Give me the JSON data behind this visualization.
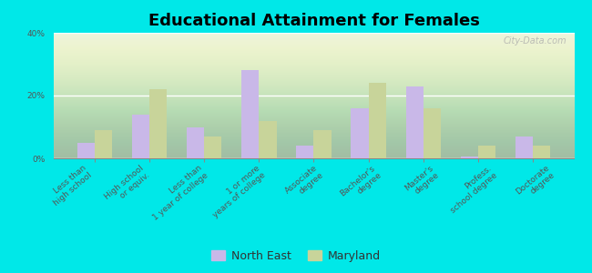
{
  "title": "Educational Attainment for Females",
  "categories": [
    "Less than\nhigh school",
    "High school\nor equiv.",
    "Less than\n1 year of college",
    "1 or more\nyears of college",
    "Associate\ndegree",
    "Bachelor's\ndegree",
    "Master's\ndegree",
    "Profess.\nschool degree",
    "Doctorate\ndegree"
  ],
  "north_east": [
    5.0,
    14.0,
    10.0,
    28.0,
    4.0,
    16.0,
    23.0,
    0.5,
    7.0
  ],
  "maryland": [
    9.0,
    22.0,
    7.0,
    12.0,
    9.0,
    24.0,
    16.0,
    4.0,
    4.0
  ],
  "ne_color": "#c9b8e8",
  "md_color": "#c8d49a",
  "background_outer": "#00e8e8",
  "background_inner": "#e8f0d8",
  "ylim": [
    0,
    40
  ],
  "yticks": [
    0,
    20,
    40
  ],
  "ytick_labels": [
    "0%",
    "20%",
    "40%"
  ],
  "watermark": "City-Data.com",
  "legend_ne": "North East",
  "legend_md": "Maryland",
  "title_fontsize": 13,
  "tick_fontsize": 6.5,
  "label_color": "#555555"
}
